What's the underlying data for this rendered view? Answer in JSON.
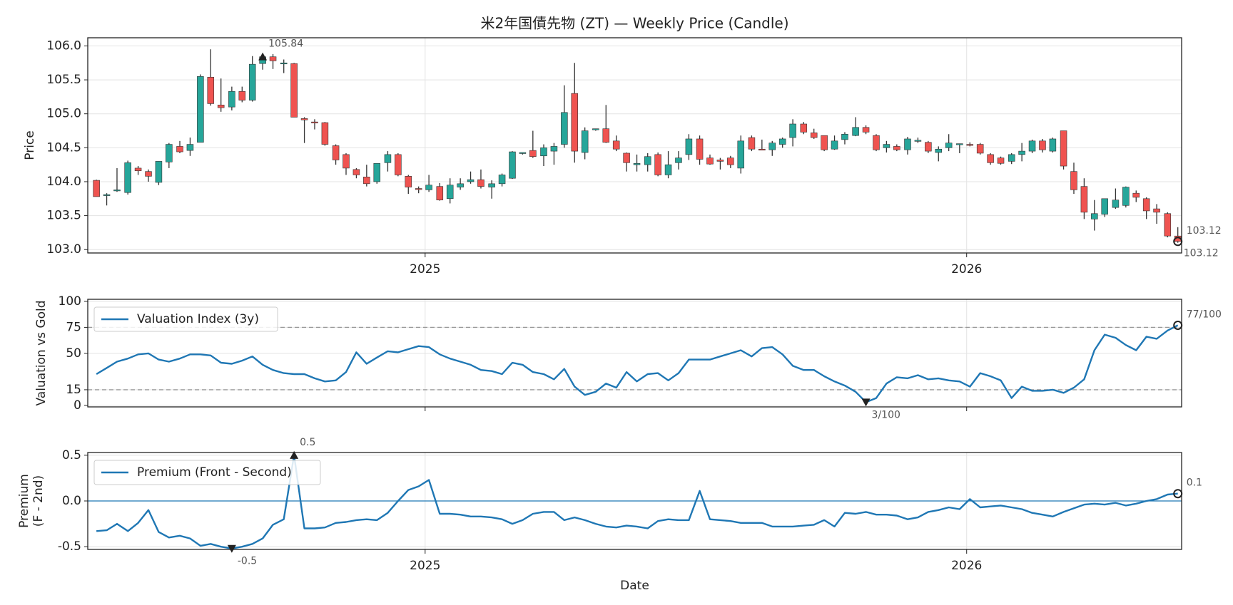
{
  "chart_data": [
    {
      "type": "candlestick",
      "title": "米2年国債先物 (ZT) — Weekly Price (Candle)",
      "ylabel": [
        "Price"
      ],
      "up_color": "#26a69a",
      "down_color": "#ef5350",
      "wick_color": "#333333",
      "grid": true,
      "xlim": [
        2024.377,
        2026.397
      ],
      "xticks": [
        2025,
        2026
      ],
      "show_xtick_labels": true,
      "ylim": [
        102.95,
        106.12
      ],
      "yticks": [
        {
          "value": 103,
          "label": "103.0"
        },
        {
          "value": 103.5,
          "label": "103.5"
        },
        {
          "value": 104,
          "label": "104.0"
        },
        {
          "value": 104.5,
          "label": "104.5"
        },
        {
          "value": 105,
          "label": "105.0"
        },
        {
          "value": 105.5,
          "label": "105.5"
        },
        {
          "value": 106,
          "label": "106.0"
        }
      ],
      "x": [
        2024.393,
        2024.412,
        2024.431,
        2024.451,
        2024.47,
        2024.489,
        2024.508,
        2024.527,
        2024.547,
        2024.566,
        2024.585,
        2024.604,
        2024.623,
        2024.643,
        2024.662,
        2024.681,
        2024.7,
        2024.719,
        2024.739,
        2024.758,
        2024.777,
        2024.796,
        2024.815,
        2024.835,
        2024.854,
        2024.873,
        2024.892,
        2024.911,
        2024.931,
        2024.95,
        2024.969,
        2024.988,
        2025.007,
        2025.027,
        2025.046,
        2025.065,
        2025.084,
        2025.103,
        2025.123,
        2025.142,
        2025.161,
        2025.18,
        2025.199,
        2025.219,
        2025.238,
        2025.257,
        2025.276,
        2025.295,
        2025.315,
        2025.334,
        2025.353,
        2025.372,
        2025.391,
        2025.411,
        2025.43,
        2025.449,
        2025.468,
        2025.487,
        2025.507,
        2025.526,
        2025.545,
        2025.564,
        2025.583,
        2025.603,
        2025.622,
        2025.641,
        2025.66,
        2025.679,
        2025.699,
        2025.718,
        2025.737,
        2025.756,
        2025.775,
        2025.795,
        2025.814,
        2025.833,
        2025.852,
        2025.871,
        2025.891,
        2025.91,
        2025.929,
        2025.948,
        2025.967,
        2025.987,
        2026.006,
        2026.025,
        2026.044,
        2026.063,
        2026.083,
        2026.102,
        2026.121,
        2026.14,
        2026.159,
        2026.179,
        2026.198,
        2026.217,
        2026.236,
        2026.255,
        2026.275,
        2026.294,
        2026.313,
        2026.332,
        2026.351,
        2026.371,
        2026.39
      ],
      "open": [
        104.02,
        103.8,
        103.87,
        103.84,
        104.2,
        104.15,
        103.99,
        104.29,
        104.52,
        104.46,
        104.58,
        105.54,
        105.13,
        105.1,
        105.33,
        105.2,
        105.74,
        105.84,
        105.74,
        105.74,
        104.93,
        104.88,
        104.87,
        104.53,
        104.4,
        104.18,
        104.07,
        104.0,
        104.28,
        104.4,
        104.08,
        103.9,
        103.88,
        103.93,
        103.75,
        103.92,
        104.0,
        104.03,
        103.92,
        103.97,
        104.05,
        104.42,
        104.46,
        104.38,
        104.45,
        104.55,
        105.3,
        104.43,
        104.77,
        104.78,
        104.6,
        104.42,
        104.25,
        104.25,
        104.4,
        104.1,
        104.28,
        104.4,
        104.63,
        104.35,
        104.32,
        104.35,
        104.2,
        104.65,
        104.48,
        104.47,
        104.55,
        104.65,
        104.85,
        104.72,
        104.68,
        104.48,
        104.62,
        104.68,
        104.8,
        104.68,
        104.5,
        104.52,
        104.47,
        104.6,
        104.58,
        104.43,
        104.5,
        104.55,
        104.55,
        104.55,
        104.4,
        104.35,
        104.3,
        104.4,
        104.45,
        104.6,
        104.45,
        104.75,
        104.15,
        103.93,
        103.45,
        103.52,
        103.62,
        103.65,
        103.83,
        103.75,
        103.6,
        103.53,
        103.2
      ],
      "high": [
        104.03,
        103.83,
        104.2,
        104.31,
        104.23,
        104.18,
        104.3,
        104.57,
        104.6,
        104.65,
        105.58,
        105.95,
        105.52,
        105.4,
        105.4,
        105.85,
        105.86,
        105.88,
        105.8,
        105.75,
        104.95,
        104.92,
        104.88,
        104.55,
        104.42,
        104.2,
        104.25,
        104.27,
        104.45,
        104.42,
        104.1,
        103.93,
        104.1,
        103.98,
        104.05,
        104.05,
        104.15,
        104.18,
        104.02,
        104.12,
        104.45,
        104.43,
        104.75,
        104.55,
        104.57,
        105.42,
        105.75,
        104.8,
        104.78,
        105.13,
        104.68,
        104.43,
        104.4,
        104.42,
        104.43,
        104.45,
        104.45,
        104.7,
        104.68,
        104.4,
        104.35,
        104.38,
        104.68,
        104.68,
        104.62,
        104.6,
        104.65,
        104.92,
        104.88,
        104.78,
        104.68,
        104.68,
        104.73,
        104.95,
        104.83,
        104.7,
        104.6,
        104.55,
        104.66,
        104.65,
        104.6,
        104.52,
        104.7,
        104.56,
        104.58,
        104.57,
        104.42,
        104.37,
        104.42,
        104.57,
        104.62,
        104.63,
        104.65,
        104.75,
        104.28,
        104.05,
        103.73,
        103.75,
        103.9,
        103.93,
        103.87,
        103.77,
        103.67,
        103.55,
        103.33
      ],
      "low": [
        103.78,
        103.65,
        103.85,
        103.81,
        104.1,
        104.0,
        103.95,
        104.2,
        104.42,
        104.38,
        104.58,
        105.12,
        105.03,
        105.05,
        105.17,
        105.18,
        105.65,
        105.66,
        105.6,
        104.95,
        104.57,
        104.77,
        104.53,
        104.25,
        104.1,
        104.05,
        103.93,
        103.97,
        104.15,
        104.08,
        103.82,
        103.83,
        103.85,
        103.72,
        103.68,
        103.88,
        103.97,
        103.9,
        103.75,
        103.93,
        104.04,
        104.4,
        104.35,
        104.23,
        104.25,
        104.5,
        104.28,
        104.33,
        104.75,
        104.57,
        104.45,
        104.15,
        104.15,
        104.15,
        104.08,
        104.05,
        104.18,
        104.32,
        104.25,
        104.25,
        104.18,
        104.2,
        104.12,
        104.45,
        104.47,
        104.38,
        104.5,
        104.52,
        104.7,
        104.63,
        104.45,
        104.47,
        104.55,
        104.67,
        104.7,
        104.45,
        104.43,
        104.45,
        104.4,
        104.57,
        104.42,
        104.3,
        104.45,
        104.42,
        104.52,
        104.4,
        104.25,
        104.25,
        104.26,
        104.3,
        104.42,
        104.43,
        104.43,
        104.18,
        103.82,
        103.45,
        103.28,
        103.48,
        103.6,
        103.62,
        103.7,
        103.45,
        103.38,
        103.18,
        103.1
      ],
      "close": [
        103.78,
        103.81,
        103.88,
        104.28,
        104.16,
        104.08,
        104.3,
        104.55,
        104.44,
        104.55,
        105.55,
        105.15,
        105.09,
        105.33,
        105.2,
        105.73,
        105.84,
        105.78,
        105.75,
        104.95,
        104.91,
        104.87,
        104.55,
        104.32,
        104.2,
        104.1,
        103.97,
        104.27,
        104.4,
        104.1,
        103.92,
        103.89,
        103.95,
        103.73,
        103.95,
        103.97,
        104.03,
        103.93,
        103.97,
        104.1,
        104.44,
        104.43,
        104.37,
        104.5,
        104.52,
        105.02,
        104.45,
        104.75,
        104.78,
        104.58,
        104.48,
        104.28,
        104.27,
        104.37,
        104.1,
        104.25,
        104.35,
        104.63,
        104.33,
        104.26,
        104.3,
        104.25,
        104.6,
        104.48,
        104.47,
        104.57,
        104.63,
        104.85,
        104.73,
        104.65,
        104.47,
        104.6,
        104.7,
        104.8,
        104.73,
        104.47,
        104.55,
        104.47,
        104.63,
        104.61,
        104.45,
        104.48,
        104.57,
        104.56,
        104.54,
        104.42,
        104.28,
        104.27,
        104.4,
        104.45,
        104.6,
        104.47,
        104.63,
        104.23,
        103.88,
        103.55,
        103.53,
        103.75,
        103.73,
        103.92,
        103.77,
        103.57,
        103.55,
        103.2,
        103.12
      ],
      "annotations": [
        {
          "x": 2024.7,
          "y": 105.84,
          "label": "105.84",
          "marker": "triangle-up"
        },
        {
          "x": 2026.39,
          "y": 103.12,
          "label": "103.12",
          "marker": "circle"
        },
        {
          "x": 2026.39,
          "y": 103.1,
          "label": "103.12",
          "marker": "none"
        }
      ]
    },
    {
      "type": "line",
      "ylabel": [
        "Valuation vs Gold"
      ],
      "grid": true,
      "legend": "upper left",
      "xlim": [
        2024.377,
        2026.397
      ],
      "xticks": [
        2025,
        2026
      ],
      "show_xtick_labels": false,
      "ylim": [
        -1.5,
        102
      ],
      "yticks": [
        0,
        15,
        50,
        75,
        100
      ],
      "hlines": [
        15,
        75
      ],
      "hline_style": "dashed",
      "hline_color": "#999999",
      "x": [
        2024.393,
        2024.412,
        2024.431,
        2024.451,
        2024.47,
        2024.489,
        2024.508,
        2024.527,
        2024.547,
        2024.566,
        2024.585,
        2024.604,
        2024.623,
        2024.643,
        2024.662,
        2024.681,
        2024.7,
        2024.719,
        2024.739,
        2024.758,
        2024.777,
        2024.796,
        2024.815,
        2024.835,
        2024.854,
        2024.873,
        2024.892,
        2024.911,
        2024.931,
        2024.95,
        2024.969,
        2024.988,
        2025.007,
        2025.027,
        2025.046,
        2025.065,
        2025.084,
        2025.103,
        2025.123,
        2025.142,
        2025.161,
        2025.18,
        2025.199,
        2025.219,
        2025.238,
        2025.257,
        2025.276,
        2025.295,
        2025.315,
        2025.334,
        2025.353,
        2025.372,
        2025.391,
        2025.411,
        2025.43,
        2025.449,
        2025.468,
        2025.487,
        2025.507,
        2025.526,
        2025.545,
        2025.564,
        2025.583,
        2025.603,
        2025.622,
        2025.641,
        2025.66,
        2025.679,
        2025.699,
        2025.718,
        2025.737,
        2025.756,
        2025.775,
        2025.795,
        2025.814,
        2025.833,
        2025.852,
        2025.871,
        2025.891,
        2025.91,
        2025.929,
        2025.948,
        2025.967,
        2025.987,
        2026.006,
        2026.025,
        2026.044,
        2026.063,
        2026.083,
        2026.102,
        2026.121,
        2026.14,
        2026.159,
        2026.179,
        2026.198,
        2026.217,
        2026.236,
        2026.255,
        2026.275,
        2026.294,
        2026.313,
        2026.332,
        2026.351,
        2026.371,
        2026.39
      ],
      "series": [
        {
          "name": "Valuation Index (3y)",
          "color": "#1f77b4",
          "values": [
            30,
            36,
            42,
            45,
            49,
            50,
            44,
            42,
            45,
            49,
            49,
            48,
            41,
            40,
            43,
            47,
            39,
            34,
            31,
            30,
            30,
            26,
            23,
            24,
            32,
            51,
            40,
            46,
            52,
            51,
            54,
            57,
            56,
            49,
            45,
            42,
            39,
            34,
            33,
            30,
            41,
            39,
            32,
            30,
            25,
            35,
            18,
            10,
            13,
            21,
            17,
            32,
            23,
            30,
            31,
            24,
            31,
            44,
            44,
            44,
            47,
            50,
            53,
            47,
            55,
            56,
            49,
            38,
            34,
            34,
            28,
            23,
            19,
            13,
            3,
            7,
            21,
            27,
            26,
            29,
            25,
            26,
            24,
            23,
            18,
            31,
            28,
            24,
            7,
            18,
            14,
            14,
            15,
            12,
            17,
            25,
            53,
            68,
            65,
            58,
            53,
            66,
            64,
            72,
            77
          ]
        }
      ],
      "annotations": [
        {
          "x": 2025.814,
          "y": 3,
          "label": "3/100",
          "marker": "triangle-down"
        },
        {
          "x": 2026.39,
          "y": 77,
          "label": "77/100",
          "marker": "circle"
        }
      ]
    },
    {
      "type": "line",
      "ylabel": [
        "Premium",
        "(F - 2nd)"
      ],
      "xlabel": "Date",
      "grid": true,
      "legend": "upper left",
      "xlim": [
        2024.377,
        2026.397
      ],
      "xticks": [
        2025,
        2026
      ],
      "show_xtick_labels": true,
      "ylim": [
        -0.53,
        0.53
      ],
      "yticks": [
        -0.5,
        {
          "value": 0,
          "label": "0.0"
        },
        0.5
      ],
      "hlines": [
        0
      ],
      "hline_style": "solid",
      "hline_color": "#1f77b4",
      "x": [
        2024.393,
        2024.412,
        2024.431,
        2024.451,
        2024.47,
        2024.489,
        2024.508,
        2024.527,
        2024.547,
        2024.566,
        2024.585,
        2024.604,
        2024.623,
        2024.643,
        2024.662,
        2024.681,
        2024.7,
        2024.719,
        2024.739,
        2024.758,
        2024.777,
        2024.796,
        2024.815,
        2024.835,
        2024.854,
        2024.873,
        2024.892,
        2024.911,
        2024.931,
        2024.95,
        2024.969,
        2024.988,
        2025.007,
        2025.027,
        2025.046,
        2025.065,
        2025.084,
        2025.103,
        2025.123,
        2025.142,
        2025.161,
        2025.18,
        2025.199,
        2025.219,
        2025.238,
        2025.257,
        2025.276,
        2025.295,
        2025.315,
        2025.334,
        2025.353,
        2025.372,
        2025.391,
        2025.411,
        2025.43,
        2025.449,
        2025.468,
        2025.487,
        2025.507,
        2025.526,
        2025.545,
        2025.564,
        2025.583,
        2025.603,
        2025.622,
        2025.641,
        2025.66,
        2025.679,
        2025.699,
        2025.718,
        2025.737,
        2025.756,
        2025.775,
        2025.795,
        2025.814,
        2025.833,
        2025.852,
        2025.871,
        2025.891,
        2025.91,
        2025.929,
        2025.948,
        2025.967,
        2025.987,
        2026.006,
        2026.025,
        2026.044,
        2026.063,
        2026.083,
        2026.102,
        2026.121,
        2026.14,
        2026.159,
        2026.179,
        2026.198,
        2026.217,
        2026.236,
        2026.255,
        2026.275,
        2026.294,
        2026.313,
        2026.332,
        2026.351,
        2026.371,
        2026.39
      ],
      "series": [
        {
          "name": "Premium (Front - Second)",
          "color": "#1f77b4",
          "values": [
            -0.33,
            -0.32,
            -0.25,
            -0.33,
            -0.24,
            -0.1,
            -0.34,
            -0.4,
            -0.38,
            -0.41,
            -0.49,
            -0.47,
            -0.5,
            -0.52,
            -0.5,
            -0.47,
            -0.41,
            -0.26,
            -0.2,
            0.5,
            -0.3,
            -0.3,
            -0.29,
            -0.24,
            -0.23,
            -0.21,
            -0.2,
            -0.21,
            -0.13,
            0.0,
            0.12,
            0.16,
            0.23,
            -0.14,
            -0.14,
            -0.15,
            -0.17,
            -0.17,
            -0.18,
            -0.2,
            -0.25,
            -0.21,
            -0.14,
            -0.12,
            -0.12,
            -0.21,
            -0.18,
            -0.21,
            -0.25,
            -0.28,
            -0.29,
            -0.27,
            -0.28,
            -0.3,
            -0.22,
            -0.2,
            -0.21,
            -0.21,
            0.11,
            -0.2,
            -0.21,
            -0.22,
            -0.24,
            -0.24,
            -0.24,
            -0.28,
            -0.28,
            -0.28,
            -0.27,
            -0.26,
            -0.21,
            -0.28,
            -0.13,
            -0.14,
            -0.12,
            -0.15,
            -0.15,
            -0.16,
            -0.2,
            -0.18,
            -0.12,
            -0.1,
            -0.07,
            -0.09,
            0.02,
            -0.07,
            -0.06,
            -0.05,
            -0.07,
            -0.09,
            -0.13,
            -0.15,
            -0.17,
            -0.12,
            -0.08,
            -0.04,
            -0.03,
            -0.04,
            -0.02,
            -0.05,
            -0.03,
            0.0,
            0.02,
            0.07,
            0.08
          ]
        }
      ],
      "annotations": [
        {
          "x": 2024.643,
          "y": -0.52,
          "label": "-0.5",
          "marker": "triangle-down"
        },
        {
          "x": 2024.758,
          "y": 0.5,
          "label": "0.5",
          "marker": "triangle-up"
        },
        {
          "x": 2026.39,
          "y": 0.08,
          "label": "0.1",
          "marker": "circle"
        }
      ]
    }
  ]
}
